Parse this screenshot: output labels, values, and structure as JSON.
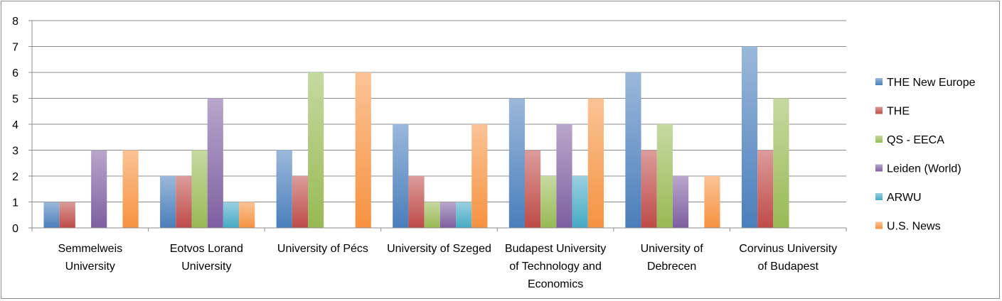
{
  "chart_data": {
    "type": "bar",
    "title": "",
    "xlabel": "",
    "ylabel": "",
    "ylim": [
      0,
      8
    ],
    "yticks": [
      "0",
      "1",
      "2",
      "3",
      "4",
      "5",
      "6",
      "7",
      "8"
    ],
    "grid": true,
    "legend_position": "right",
    "categories": [
      [
        "Semmelweis",
        "University"
      ],
      [
        "Eotvos Lorand",
        "University"
      ],
      [
        "University of Pécs"
      ],
      [
        "University of Szeged"
      ],
      [
        "Budapest University",
        "of Technology and",
        "Economics"
      ],
      [
        "University of",
        "Debrecen"
      ],
      [
        "Corvinus University",
        "of Budapest"
      ]
    ],
    "series": [
      {
        "name": "THE New Europe",
        "color": "#4a7ebb",
        "values": [
          1,
          2,
          3,
          4,
          5,
          6,
          7
        ]
      },
      {
        "name": "THE",
        "color": "#be4b48",
        "values": [
          1,
          2,
          2,
          2,
          3,
          3,
          3
        ]
      },
      {
        "name": "QS - EECA",
        "color": "#98b954",
        "values": [
          null,
          3,
          6,
          1,
          2,
          4,
          5
        ]
      },
      {
        "name": "Leiden (World)",
        "color": "#7d5fa0",
        "values": [
          3,
          5,
          null,
          1,
          4,
          2,
          null
        ]
      },
      {
        "name": "ARWU",
        "color": "#46aac5",
        "values": [
          null,
          1,
          null,
          1,
          2,
          null,
          null
        ]
      },
      {
        "name": "U.S. News",
        "color": "#f69240",
        "values": [
          3,
          1,
          6,
          4,
          5,
          2,
          null
        ]
      }
    ]
  }
}
